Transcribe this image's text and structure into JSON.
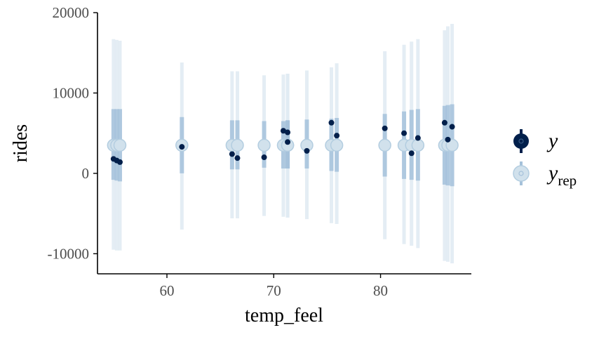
{
  "chart_data": {
    "type": "scatter",
    "subtype": "ppc_intervals",
    "xlabel": "temp_feel",
    "ylabel": "rides",
    "xlim": [
      53.5,
      88.5
    ],
    "ylim": [
      -12500,
      20000
    ],
    "x_ticks": [
      60,
      70,
      80
    ],
    "y_ticks": [
      -10000,
      0,
      10000,
      20000
    ],
    "x_tick_labels": [
      "60",
      "70",
      "80"
    ],
    "y_tick_labels": [
      "-10000",
      "0",
      "10000",
      "20000"
    ],
    "colors": {
      "y": "#011f4b",
      "yrep_point": "#d1e1ec",
      "yrep_point_edge": "#b3cde0",
      "inner_interval": "#a5c1da",
      "outer_interval": "#dfeaf2",
      "axis": "#000000"
    },
    "legend": {
      "position": "right",
      "items": [
        {
          "key": "y",
          "label": "y",
          "sub": ""
        },
        {
          "key": "yrep",
          "label": "y",
          "sub": "rep"
        }
      ]
    },
    "points": [
      {
        "x": 55.0,
        "y": 1800,
        "yrep": 3500,
        "inner": [
          -800,
          8000
        ],
        "outer": [
          -9500,
          16700
        ]
      },
      {
        "x": 55.3,
        "y": 1600,
        "yrep": 3500,
        "inner": [
          -900,
          8000
        ],
        "outer": [
          -9600,
          16600
        ]
      },
      {
        "x": 55.6,
        "y": 1400,
        "yrep": 3500,
        "inner": [
          -1000,
          8000
        ],
        "outer": [
          -9600,
          16500
        ]
      },
      {
        "x": 61.4,
        "y": 3300,
        "yrep": 3500,
        "inner": [
          0,
          7000
        ],
        "outer": [
          -7000,
          13800
        ]
      },
      {
        "x": 66.1,
        "y": 2400,
        "yrep": 3500,
        "inner": [
          500,
          6600
        ],
        "outer": [
          -5600,
          12700
        ]
      },
      {
        "x": 66.6,
        "y": 1900,
        "yrep": 3500,
        "inner": [
          500,
          6600
        ],
        "outer": [
          -5600,
          12700
        ]
      },
      {
        "x": 69.1,
        "y": 2000,
        "yrep": 3500,
        "inner": [
          700,
          6500
        ],
        "outer": [
          -5300,
          12200
        ]
      },
      {
        "x": 70.9,
        "y": 5300,
        "yrep": 3500,
        "inner": [
          600,
          6500
        ],
        "outer": [
          -5400,
          12300
        ]
      },
      {
        "x": 71.3,
        "y": 5100,
        "yrep": 3500,
        "inner": [
          600,
          6600
        ],
        "outer": [
          -5500,
          12400
        ]
      },
      {
        "x": 71.3,
        "y": 3900,
        "yrep": 3500,
        "inner": [
          600,
          6600
        ],
        "outer": [
          -5500,
          12400
        ]
      },
      {
        "x": 73.1,
        "y": 2800,
        "yrep": 3500,
        "inner": [
          600,
          6700
        ],
        "outer": [
          -5700,
          12800
        ]
      },
      {
        "x": 75.4,
        "y": 6300,
        "yrep": 3500,
        "inner": [
          300,
          6800
        ],
        "outer": [
          -6200,
          13200
        ]
      },
      {
        "x": 75.9,
        "y": 4700,
        "yrep": 3500,
        "inner": [
          200,
          6900
        ],
        "outer": [
          -6300,
          13700
        ]
      },
      {
        "x": 80.4,
        "y": 5600,
        "yrep": 3500,
        "inner": [
          -400,
          7400
        ],
        "outer": [
          -8200,
          15200
        ]
      },
      {
        "x": 82.2,
        "y": 5000,
        "yrep": 3500,
        "inner": [
          -700,
          7700
        ],
        "outer": [
          -8800,
          16000
        ]
      },
      {
        "x": 82.9,
        "y": 2500,
        "yrep": 3500,
        "inner": [
          -800,
          7900
        ],
        "outer": [
          -9000,
          16400
        ]
      },
      {
        "x": 83.5,
        "y": 4400,
        "yrep": 3500,
        "inner": [
          -900,
          8000
        ],
        "outer": [
          -9300,
          16700
        ]
      },
      {
        "x": 86.0,
        "y": 6300,
        "yrep": 3500,
        "inner": [
          -1400,
          8400
        ],
        "outer": [
          -10900,
          17800
        ]
      },
      {
        "x": 86.3,
        "y": 4200,
        "yrep": 3500,
        "inner": [
          -1500,
          8500
        ],
        "outer": [
          -11000,
          18300
        ]
      },
      {
        "x": 86.7,
        "y": 5800,
        "yrep": 3500,
        "inner": [
          -1600,
          8600
        ],
        "outer": [
          -11200,
          18600
        ]
      }
    ]
  }
}
